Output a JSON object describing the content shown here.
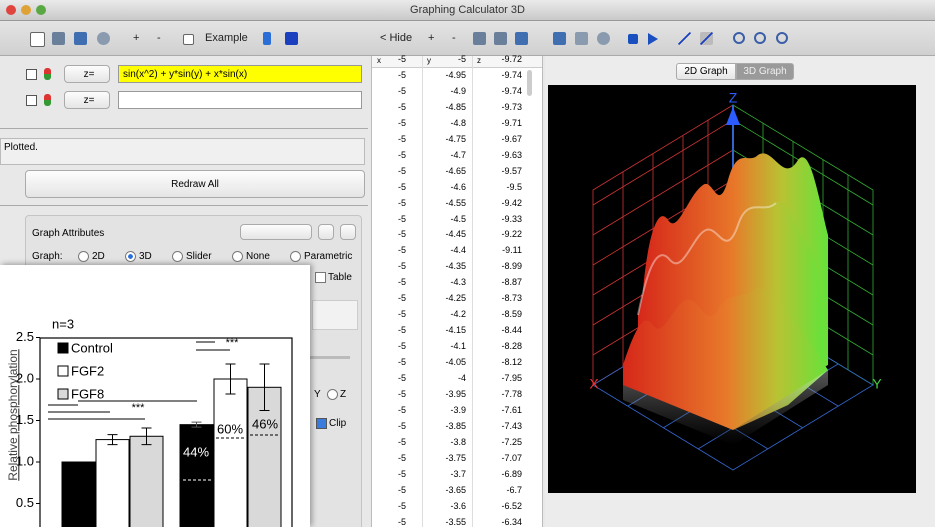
{
  "window": {
    "title": "Graphing Calculator 3D"
  },
  "toolbar": {
    "add": "+",
    "remove": "-",
    "example": "Example",
    "hide": "< Hide",
    "table_add": "+",
    "table_remove": "-"
  },
  "equations": [
    {
      "op": "z=",
      "expr": "sin(x^2) + y*sin(y) + x*sin(x)"
    },
    {
      "op": "z="
    }
  ],
  "status": "Plotted.",
  "redraw": "Redraw All",
  "attributes": {
    "title": "Graph Attributes",
    "graph_label": "Graph:",
    "options": [
      "2D",
      "3D",
      "Slider",
      "None",
      "Parametric"
    ],
    "table": "Table",
    "y": "Y",
    "z": "Z",
    "clip": "Clip"
  },
  "tabs": [
    "2D Graph",
    "3D Graph"
  ],
  "axes": {
    "z": "Z",
    "x": "X",
    "y": "Y"
  },
  "data_table": {
    "columns": [
      "x",
      "y",
      "z"
    ],
    "rows": [
      [
        -5,
        -5,
        -9.72
      ],
      [
        -5,
        -4.95,
        -9.74
      ],
      [
        -5,
        -4.9,
        -9.74
      ],
      [
        -5,
        -4.85,
        -9.73
      ],
      [
        -5,
        -4.8,
        -9.71
      ],
      [
        -5,
        -4.75,
        -9.67
      ],
      [
        -5,
        -4.7,
        -9.63
      ],
      [
        -5,
        -4.65,
        -9.57
      ],
      [
        -5,
        -4.6,
        -9.5
      ],
      [
        -5,
        -4.55,
        -9.42
      ],
      [
        -5,
        -4.5,
        -9.33
      ],
      [
        -5,
        -4.45,
        -9.22
      ],
      [
        -5,
        -4.4,
        -9.11
      ],
      [
        -5,
        -4.35,
        -8.99
      ],
      [
        -5,
        -4.3,
        -8.87
      ],
      [
        -5,
        -4.25,
        -8.73
      ],
      [
        -5,
        -4.2,
        -8.59
      ],
      [
        -5,
        -4.15,
        -8.44
      ],
      [
        -5,
        -4.1,
        -8.28
      ],
      [
        -5,
        -4.05,
        -8.12
      ],
      [
        -5,
        -4,
        -7.95
      ],
      [
        -5,
        -3.95,
        -7.78
      ],
      [
        -5,
        -3.9,
        -7.61
      ],
      [
        -5,
        -3.85,
        -7.43
      ],
      [
        -5,
        -3.8,
        -7.25
      ],
      [
        -5,
        -3.75,
        -7.07
      ],
      [
        -5,
        -3.7,
        -6.89
      ],
      [
        -5,
        -3.65,
        -6.7
      ],
      [
        -5,
        -3.6,
        -6.52
      ],
      [
        -5,
        -3.55,
        -6.34
      ]
    ]
  },
  "inset_chart": {
    "type": "bar",
    "title": "n=3",
    "ylabel": "Relative phosphorylation",
    "ylim": [
      0,
      2.5
    ],
    "yticks": [
      0.5,
      {
        "value": 1,
        "label": "1.0"
      },
      1.5,
      {
        "value": 2,
        "label": "2.0"
      },
      2.5
    ],
    "series": [
      {
        "name": "Control",
        "color": "#000000",
        "values": [
          1.0,
          1.45
        ],
        "errors": [
          null,
          0.03
        ]
      },
      {
        "name": "FGF2",
        "color": "#ffffff",
        "values": [
          1.27,
          2.0
        ],
        "errors": [
          0.06,
          0.18
        ]
      },
      {
        "name": "FGF8",
        "color": "#d9d9d9",
        "values": [
          1.31,
          1.9
        ],
        "errors": [
          0.1,
          0.28
        ]
      }
    ],
    "annotations": [
      "***",
      "***",
      "44%",
      "60%",
      "46%"
    ]
  }
}
